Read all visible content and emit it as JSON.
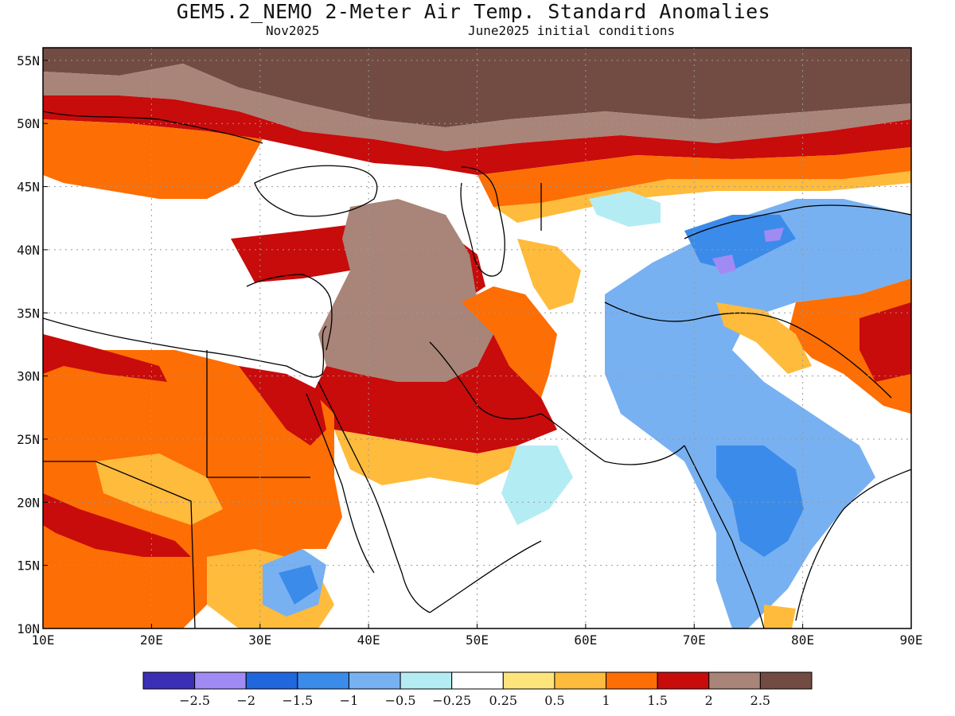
{
  "title": "GEM5.2_NEMO 2-Meter Air Temp. Standard Anomalies",
  "subtitle_left": "Nov2025",
  "subtitle_right": "June2025 initial conditions",
  "map": {
    "lon_range": [
      10,
      90
    ],
    "lat_range": [
      10,
      56
    ],
    "lat_labels": [
      "10N",
      "15N",
      "20N",
      "25N",
      "30N",
      "35N",
      "40N",
      "45N",
      "50N",
      "55N"
    ],
    "lon_labels": [
      "10E",
      "20E",
      "30E",
      "40E",
      "50E",
      "60E",
      "70E",
      "80E",
      "90E"
    ],
    "gridlines": "dotted"
  },
  "colorbar": {
    "colors": [
      "#3b2fb6",
      "#a08bf4",
      "#2066dd",
      "#3b8bea",
      "#78b1f1",
      "#b4ecf4",
      "#ffffff",
      "#fde57c",
      "#ffbb3c",
      "#fd6e04",
      "#c80b0b",
      "#a98479",
      "#724c43"
    ],
    "labels": [
      "−2.5",
      "−2",
      "−1.5",
      "−1",
      "−0.5",
      "−0.25",
      "0.25",
      "0.5",
      "1",
      "1.5",
      "2",
      "2.5"
    ]
  }
}
